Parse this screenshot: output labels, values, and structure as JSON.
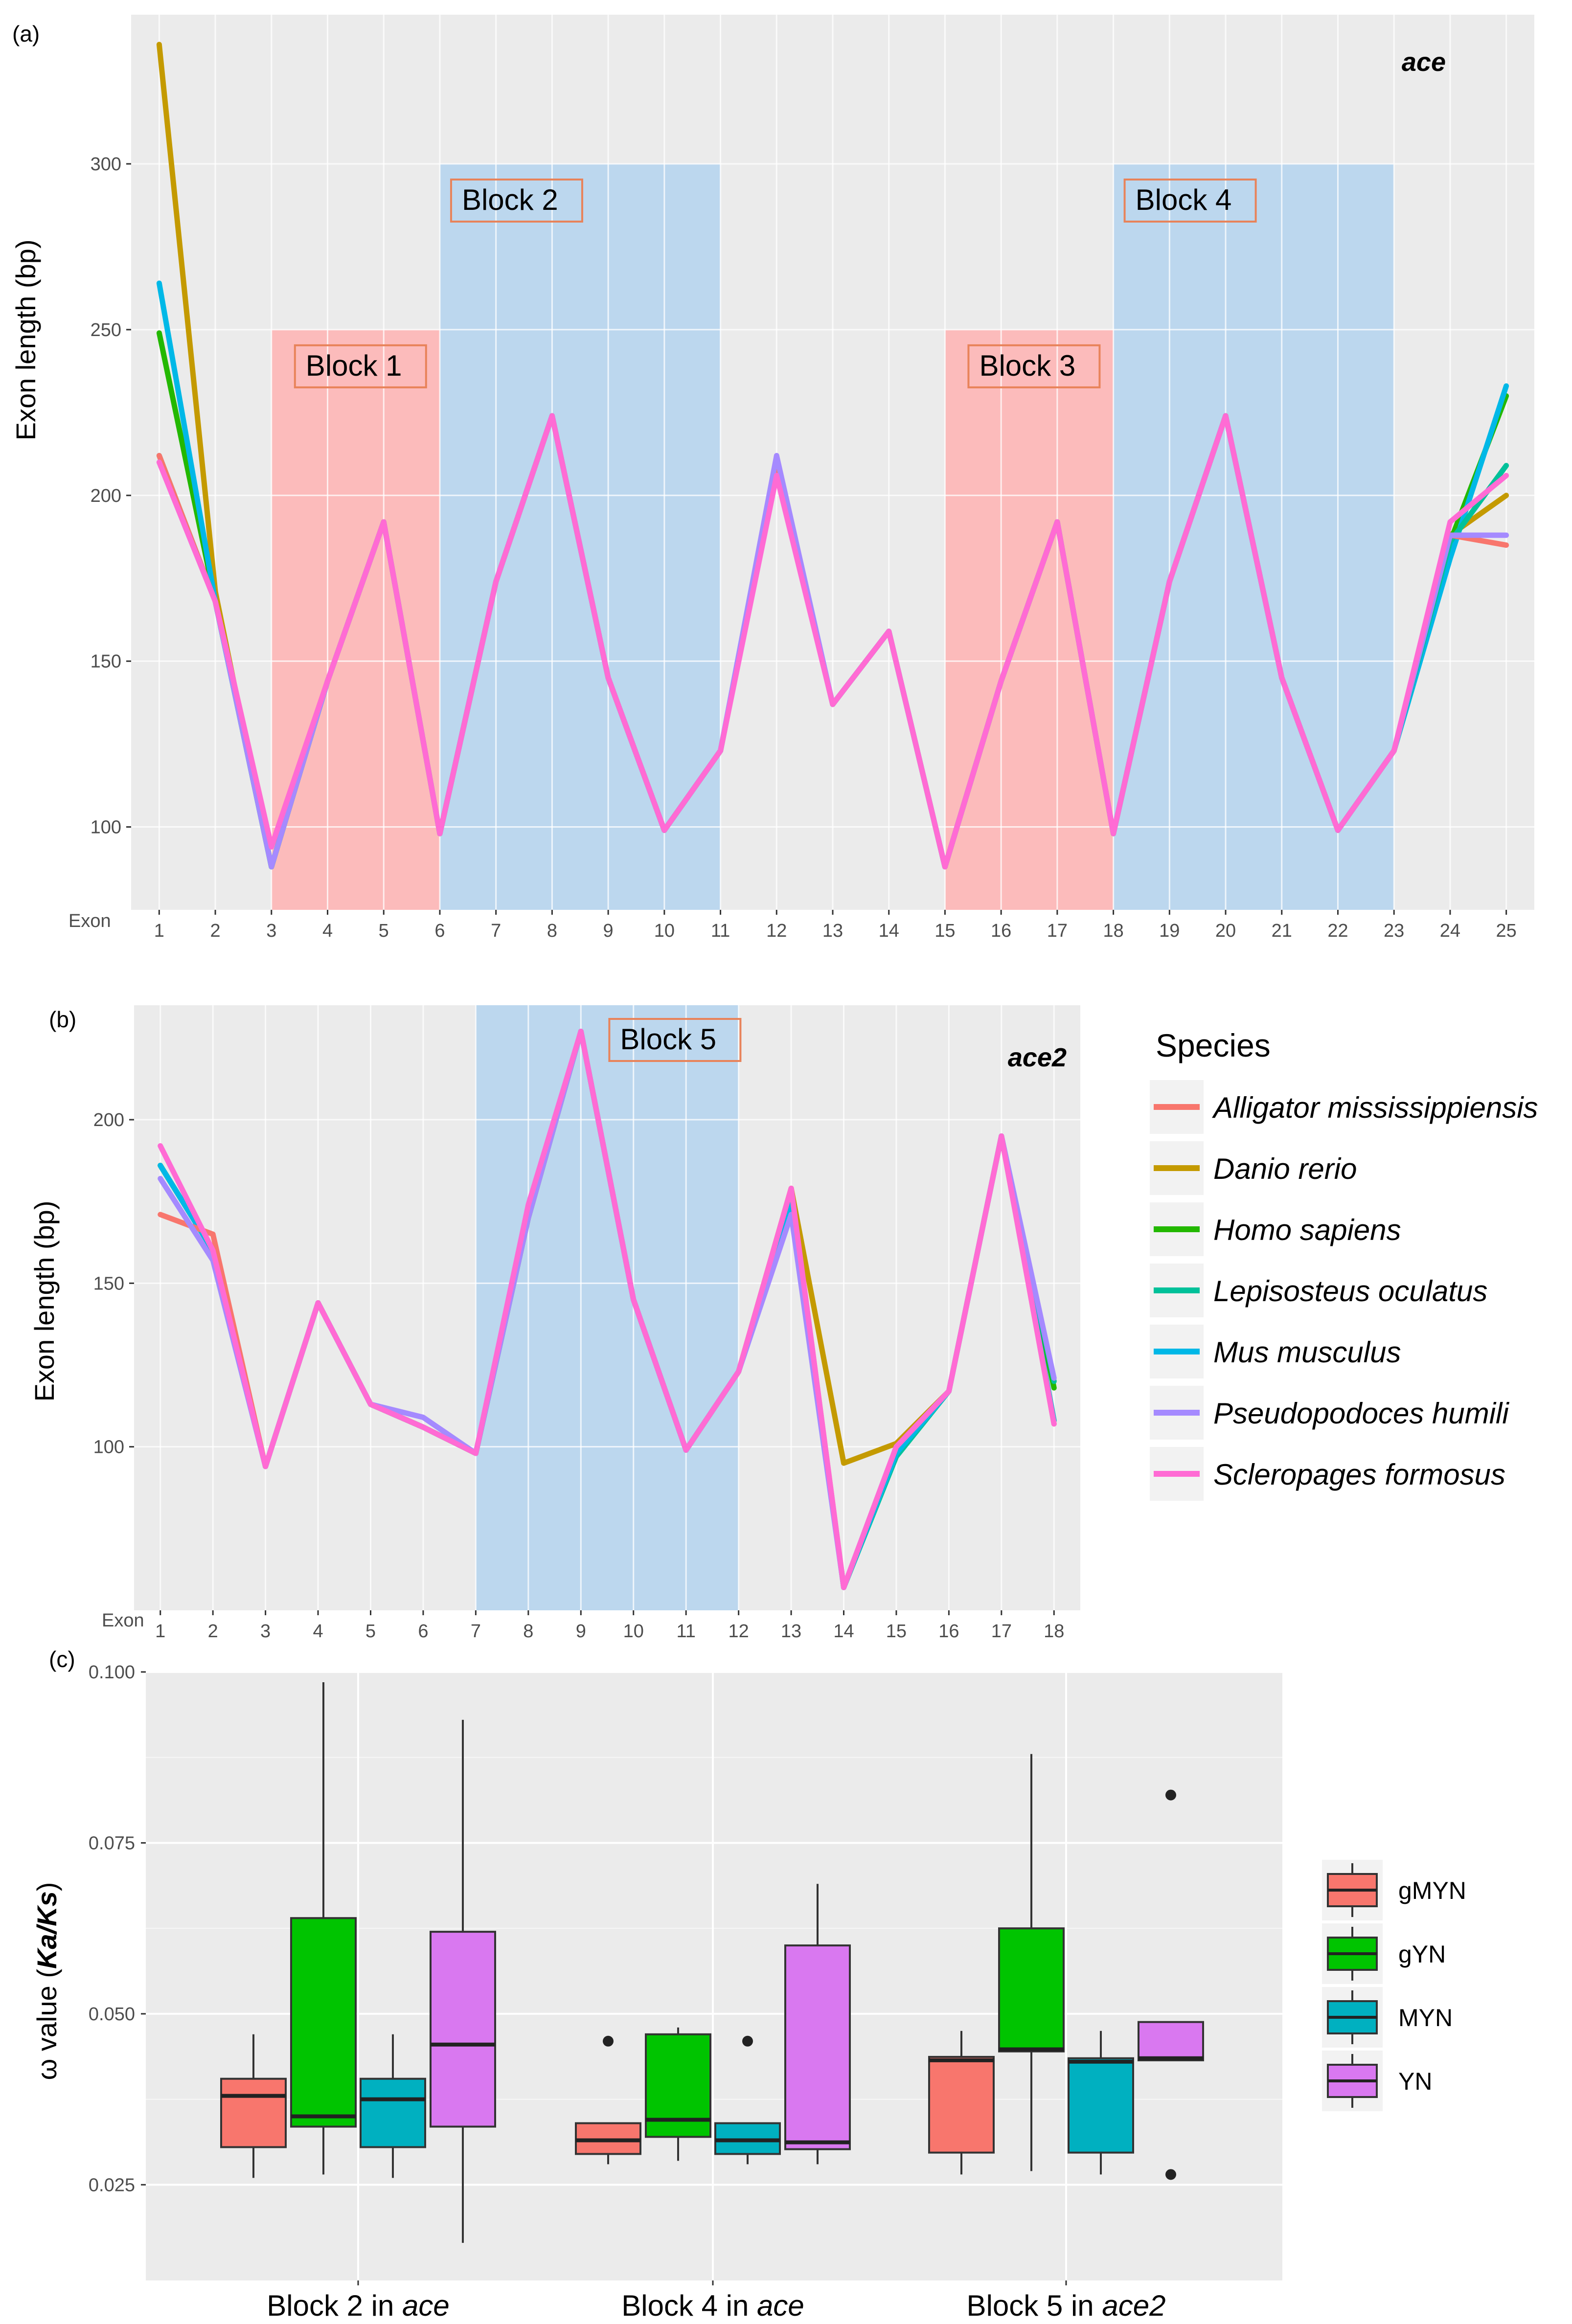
{
  "chart_data": [
    {
      "panel": "(a)",
      "type": "line",
      "gene_label": "ace",
      "title": "",
      "xlabel": "Exon",
      "ylabel": "Exon length (bp)",
      "x": [
        1,
        2,
        3,
        4,
        5,
        6,
        7,
        8,
        9,
        10,
        11,
        12,
        13,
        14,
        15,
        16,
        17,
        18,
        19,
        20,
        21,
        22,
        23,
        24,
        25
      ],
      "xlim": [
        0.5,
        25.5
      ],
      "ylim": [
        75,
        345
      ],
      "yticks": [
        100,
        150,
        200,
        250,
        300
      ],
      "blocks": [
        {
          "label": "Block 1",
          "x0": 3,
          "x1": 6,
          "y0": 75,
          "y1": 250,
          "color": "#ffb3b3"
        },
        {
          "label": "Block 2",
          "x0": 6,
          "x1": 11,
          "y0": 75,
          "y1": 300,
          "color": "#b4d4ee"
        },
        {
          "label": "Block 3",
          "x0": 15,
          "x1": 18,
          "y0": 75,
          "y1": 250,
          "color": "#ffb3b3"
        },
        {
          "label": "Block 4",
          "x0": 18,
          "x1": 23,
          "y0": 75,
          "y1": 300,
          "color": "#b4d4ee"
        }
      ],
      "series": [
        {
          "name": "Danio rerio",
          "values": [
            336,
            171,
            88,
            144,
            192,
            98,
            174,
            224,
            145,
            99,
            123,
            208,
            137,
            159,
            88,
            144,
            192,
            98,
            174,
            224,
            145,
            99,
            123,
            188,
            200
          ]
        },
        {
          "name": "Homo sapiens",
          "values": [
            249,
            168,
            88,
            144,
            192,
            98,
            174,
            224,
            145,
            99,
            123,
            208,
            137,
            159,
            88,
            144,
            192,
            98,
            174,
            224,
            145,
            99,
            123,
            186,
            230
          ]
        },
        {
          "name": "Mus musculus",
          "values": [
            264,
            168,
            88,
            144,
            192,
            98,
            174,
            224,
            145,
            99,
            123,
            208,
            137,
            159,
            88,
            144,
            192,
            98,
            174,
            224,
            145,
            99,
            123,
            181,
            233
          ]
        },
        {
          "name": "Lepisosteus oculatus",
          "values": [
            212,
            168,
            88,
            144,
            192,
            98,
            174,
            224,
            145,
            99,
            123,
            208,
            137,
            159,
            88,
            144,
            192,
            98,
            174,
            224,
            145,
            99,
            123,
            186,
            209
          ]
        },
        {
          "name": "Alligator mississippiensis",
          "values": [
            212,
            168,
            94,
            144,
            192,
            98,
            174,
            224,
            145,
            99,
            123,
            208,
            137,
            159,
            88,
            144,
            192,
            98,
            174,
            224,
            145,
            99,
            123,
            188,
            185
          ]
        },
        {
          "name": "Pseudopodoces humili",
          "values": [
            210,
            168,
            88,
            144,
            192,
            98,
            174,
            224,
            145,
            99,
            123,
            212,
            137,
            159,
            88,
            144,
            192,
            98,
            174,
            224,
            145,
            99,
            123,
            188,
            188
          ]
        },
        {
          "name": "Scleropages formosus",
          "values": [
            210,
            168,
            94,
            144,
            192,
            98,
            174,
            224,
            145,
            99,
            123,
            206,
            137,
            159,
            88,
            144,
            192,
            98,
            174,
            224,
            145,
            99,
            123,
            192,
            206
          ]
        }
      ]
    },
    {
      "panel": "(b)",
      "type": "line",
      "gene_label": "ace2",
      "title": "",
      "xlabel": "Exon",
      "ylabel": "Exon length (bp)",
      "x": [
        1,
        2,
        3,
        4,
        5,
        6,
        7,
        8,
        9,
        10,
        11,
        12,
        13,
        14,
        15,
        16,
        17,
        18
      ],
      "xlim": [
        0.5,
        18.5
      ],
      "ylim": [
        50,
        235
      ],
      "yticks": [
        100,
        150,
        200
      ],
      "blocks": [
        {
          "label": "Block 5",
          "x0": 7,
          "x1": 12,
          "y0": 50,
          "y1": 235,
          "color": "#b4d4ee"
        }
      ],
      "series": [
        {
          "name": "Danio rerio",
          "values": [
            186,
            160,
            94,
            144,
            113,
            106,
            98,
            170,
            227,
            145,
            99,
            123,
            179,
            95,
            101,
            117,
            195,
            108
          ]
        },
        {
          "name": "Homo sapiens",
          "values": [
            186,
            160,
            94,
            144,
            113,
            106,
            98,
            170,
            227,
            145,
            99,
            123,
            175,
            57,
            98,
            117,
            195,
            118
          ]
        },
        {
          "name": "Lepisosteus oculatus",
          "values": [
            186,
            160,
            94,
            144,
            113,
            106,
            98,
            170,
            227,
            145,
            99,
            123,
            175,
            57,
            97,
            117,
            195,
            120
          ]
        },
        {
          "name": "Mus musculus",
          "values": [
            186,
            160,
            94,
            144,
            113,
            106,
            98,
            170,
            227,
            145,
            99,
            123,
            175,
            57,
            98,
            117,
            195,
            108
          ]
        },
        {
          "name": "Alligator mississippiensis",
          "values": [
            171,
            165,
            94,
            144,
            113,
            106,
            98,
            170,
            227,
            145,
            99,
            123,
            179,
            57,
            100,
            117,
            195,
            107
          ]
        },
        {
          "name": "Pseudopodoces humili",
          "values": [
            182,
            157,
            94,
            144,
            113,
            109,
            98,
            170,
            227,
            145,
            99,
            123,
            171,
            57,
            100,
            117,
            195,
            121
          ]
        },
        {
          "name": "Scleropages formosus",
          "values": [
            192,
            160,
            94,
            144,
            113,
            106,
            98,
            174,
            227,
            145,
            99,
            123,
            179,
            57,
            100,
            117,
            195,
            107
          ]
        }
      ]
    },
    {
      "panel": "(c)",
      "type": "box",
      "title": "",
      "xlabel": "",
      "ylabel_prefix": "ω value (",
      "ylabel_em": "Ka/Ks",
      "ylabel_suffix": ")",
      "ylim": [
        0.011,
        0.1
      ]
    }
  ],
  "panel_a": {
    "label": "(a)",
    "gene": "ace",
    "y_title": "Exon length (bp)",
    "x_title": "Exon",
    "ytick_labels": [
      "100",
      "150",
      "200",
      "250",
      "300"
    ],
    "xtick_labels": [
      "1",
      "2",
      "3",
      "4",
      "5",
      "6",
      "7",
      "8",
      "9",
      "10",
      "11",
      "12",
      "13",
      "14",
      "15",
      "16",
      "17",
      "18",
      "19",
      "20",
      "21",
      "22",
      "23",
      "24",
      "25"
    ],
    "block_labels": [
      "Block 1",
      "Block 2",
      "Block 3",
      "Block 4"
    ]
  },
  "panel_b": {
    "label": "(b)",
    "gene": "ace2",
    "y_title": "Exon length (bp)",
    "x_title": "Exon",
    "ytick_labels": [
      "100",
      "150",
      "200"
    ],
    "xtick_labels": [
      "1",
      "2",
      "3",
      "4",
      "5",
      "6",
      "7",
      "8",
      "9",
      "10",
      "11",
      "12",
      "13",
      "14",
      "15",
      "16",
      "17",
      "18"
    ],
    "block_label": "Block 5"
  },
  "panel_c": {
    "label": "(c)",
    "y_title_prefix": "ω value (",
    "y_title_em": "Ka/Ks",
    "y_title_suffix": ")",
    "ytick_labels": [
      "0.025",
      "0.050",
      "0.075",
      "0.100"
    ],
    "ytick_values": [
      0.025,
      0.05,
      0.075,
      0.1
    ],
    "groups": [
      {
        "prefix": "Block 2 in ",
        "gene": "ace"
      },
      {
        "prefix": "Block 4 in ",
        "gene": "ace"
      },
      {
        "prefix": "Block 5 in ",
        "gene": "ace2"
      }
    ],
    "methods": [
      {
        "name": "gMYN",
        "color": "#f8766d"
      },
      {
        "name": "gYN",
        "color": "#00c400"
      },
      {
        "name": "MYN",
        "color": "#00b0c0"
      },
      {
        "name": "YN",
        "color": "#d978f0"
      }
    ],
    "boxes": [
      [
        {
          "method": "gMYN",
          "min": 0.026,
          "q1": 0.0305,
          "median": 0.038,
          "q3": 0.0405,
          "max": 0.047,
          "outliers": []
        },
        {
          "method": "gYN",
          "min": 0.0265,
          "q1": 0.0335,
          "median": 0.035,
          "q3": 0.064,
          "max": 0.0985,
          "outliers": []
        },
        {
          "method": "MYN",
          "min": 0.026,
          "q1": 0.0305,
          "median": 0.0375,
          "q3": 0.0405,
          "max": 0.047,
          "outliers": []
        },
        {
          "method": "YN",
          "min": 0.0165,
          "q1": 0.0335,
          "median": 0.0455,
          "q3": 0.062,
          "max": 0.093,
          "outliers": []
        }
      ],
      [
        {
          "method": "gMYN",
          "min": 0.028,
          "q1": 0.0295,
          "median": 0.0315,
          "q3": 0.034,
          "max": 0.034,
          "outliers": [
            0.046
          ]
        },
        {
          "method": "gYN",
          "min": 0.0285,
          "q1": 0.032,
          "median": 0.0345,
          "q3": 0.047,
          "max": 0.048,
          "outliers": []
        },
        {
          "method": "MYN",
          "min": 0.028,
          "q1": 0.0295,
          "median": 0.0315,
          "q3": 0.034,
          "max": 0.034,
          "outliers": [
            0.046
          ]
        },
        {
          "method": "YN",
          "min": 0.028,
          "q1": 0.0302,
          "median": 0.0312,
          "q3": 0.06,
          "max": 0.069,
          "outliers": []
        }
      ],
      [
        {
          "method": "gMYN",
          "min": 0.0265,
          "q1": 0.0297,
          "median": 0.0432,
          "q3": 0.0437,
          "max": 0.0475,
          "outliers": []
        },
        {
          "method": "gYN",
          "min": 0.027,
          "q1": 0.0445,
          "median": 0.0448,
          "q3": 0.0625,
          "max": 0.088,
          "outliers": []
        },
        {
          "method": "MYN",
          "min": 0.0265,
          "q1": 0.0297,
          "median": 0.043,
          "q3": 0.0435,
          "max": 0.0475,
          "outliers": []
        },
        {
          "method": "YN",
          "min": 0.0432,
          "q1": 0.0432,
          "median": 0.0435,
          "q3": 0.0488,
          "max": 0.0488,
          "outliers": [
            0.082,
            0.0265
          ]
        }
      ]
    ]
  },
  "legend": {
    "title": "Species",
    "items": [
      {
        "name": "Alligator mississippiensis",
        "color": "#f8766d"
      },
      {
        "name": "Danio rerio",
        "color": "#c49a00"
      },
      {
        "name": "Homo sapiens",
        "color": "#23b800"
      },
      {
        "name": "Lepisosteus oculatus",
        "color": "#00c19a"
      },
      {
        "name": "Mus musculus",
        "color": "#00b8e7"
      },
      {
        "name": "Pseudopodoces humili",
        "color": "#a58aff"
      },
      {
        "name": "Scleropages formosus",
        "color": "#ff6bd4"
      }
    ]
  }
}
